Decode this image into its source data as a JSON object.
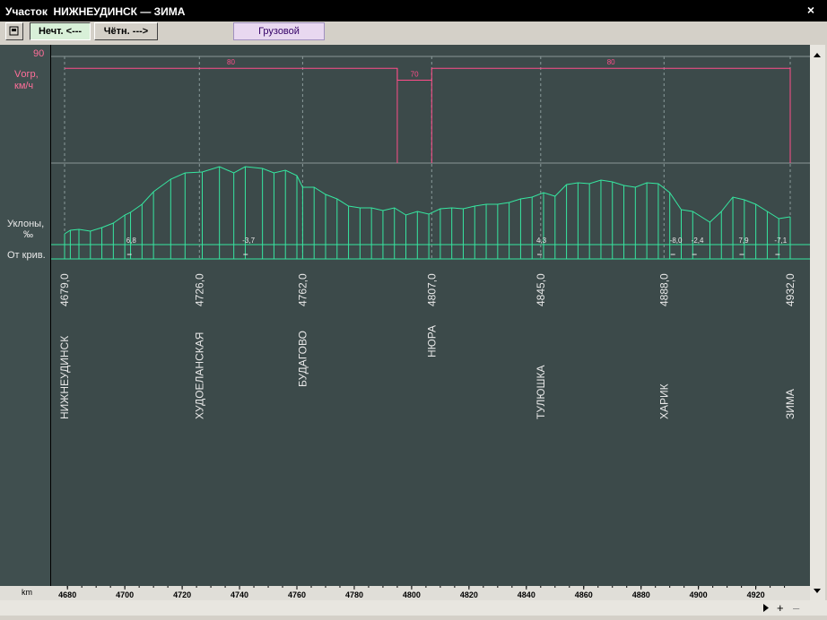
{
  "window": {
    "title": "Участок  НИЖНЕУДИНСК — ЗИМА",
    "close": "×"
  },
  "toolbar": {
    "sq_icon": "restore-icon",
    "odd_label": "Нечт. <---",
    "even_label": "Чётн. --->",
    "type_label": "Грузовой"
  },
  "left": {
    "speed_max": "90",
    "speed_label_1": "Vогр,",
    "speed_label_2": "км/ч",
    "slope_label_1": "Уклоны,",
    "slope_label_2": "‰",
    "curve_label": "От крив."
  },
  "axis_unit": "km",
  "colors": {
    "speed": "#ff4d8a",
    "profile": "#36e6a0",
    "grid": "#8a9595"
  },
  "stations": [
    {
      "name": "НИЖНЕУДИНСК",
      "km": 4679.0,
      "km_label": "4679,0"
    },
    {
      "name": "ХУДОЕЛАНСКАЯ",
      "km": 4726.0,
      "km_label": "4726,0"
    },
    {
      "name": "БУДАГОВО",
      "km": 4762.0,
      "km_label": "4762,0"
    },
    {
      "name": "НЮРА",
      "km": 4807.0,
      "km_label": "4807,0"
    },
    {
      "name": "ТУЛЮШКА",
      "km": 4845.0,
      "km_label": "4845,0"
    },
    {
      "name": "ХАРИК",
      "km": 4888.0,
      "km_label": "4888,0"
    },
    {
      "name": "ЗИМА",
      "km": 4932.0,
      "km_label": "4932,0"
    }
  ],
  "speed_limits": [
    {
      "from": 4679.0,
      "to": 4795.0,
      "value": 80,
      "label": "80"
    },
    {
      "from": 4795.0,
      "to": 4807.0,
      "value": 70,
      "label": "70"
    },
    {
      "from": 4807.0,
      "to": 4932.0,
      "value": 80,
      "label": "80"
    }
  ],
  "slope_labels": [
    {
      "km": 4700.5,
      "text": "6,8"
    },
    {
      "km": 4741.0,
      "text": "-3,7"
    },
    {
      "km": 4843.5,
      "text": "4,3"
    },
    {
      "km": 4890.0,
      "text": "-8,0"
    },
    {
      "km": 4897.5,
      "text": "-2,4"
    },
    {
      "km": 4914.0,
      "text": "7,9"
    },
    {
      "km": 4926.5,
      "text": "-7,1"
    }
  ],
  "axis_ticks": [
    "4680",
    "4700",
    "4720",
    "4740",
    "4760",
    "4780",
    "4800",
    "4820",
    "4840",
    "4860",
    "4880",
    "4900",
    "4920"
  ]
}
